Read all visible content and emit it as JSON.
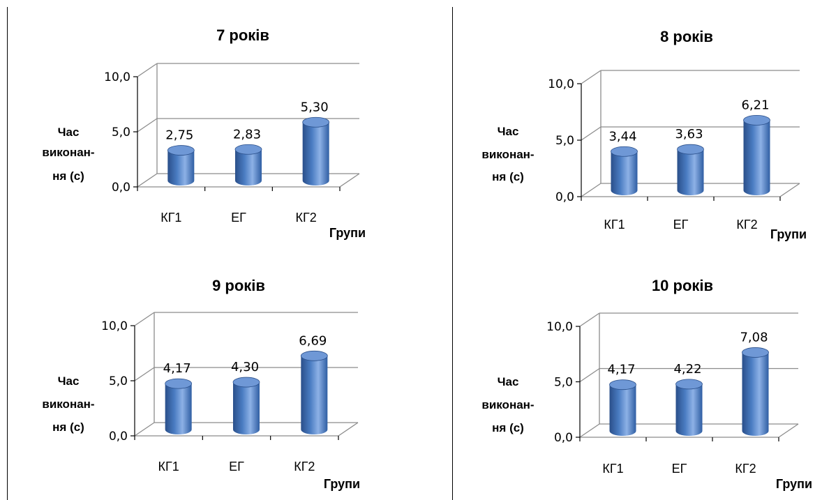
{
  "chart_data": [
    {
      "type": "bar",
      "title": "7 років",
      "categories": [
        "КГ1",
        "ЕГ",
        "КГ2"
      ],
      "values": [
        2.75,
        2.83,
        5.3
      ],
      "value_labels": [
        "2,75",
        "2,83",
        "5,30"
      ],
      "ylabel_lines": [
        "Час",
        "виконан-",
        "ня (с)"
      ],
      "xlabel": "Групи",
      "ylim": [
        0,
        10
      ],
      "yticks": [
        "0,0",
        "5,0",
        "10,0"
      ],
      "grid": true
    },
    {
      "type": "bar",
      "title": "8 років",
      "categories": [
        "КГ1",
        "ЕГ",
        "КГ2"
      ],
      "values": [
        3.44,
        3.63,
        6.21
      ],
      "value_labels": [
        "3,44",
        "3,63",
        "6,21"
      ],
      "ylabel_lines": [
        "Час",
        "виконан-",
        "ня (с)"
      ],
      "xlabel": "Групи",
      "ylim": [
        0,
        10
      ],
      "yticks": [
        "0,0",
        "5,0",
        "10,0"
      ],
      "grid": true
    },
    {
      "type": "bar",
      "title": "9 років",
      "categories": [
        "КГ1",
        "ЕГ",
        "КГ2"
      ],
      "values": [
        4.17,
        4.3,
        6.69
      ],
      "value_labels": [
        "4,17",
        "4,30",
        "6,69"
      ],
      "ylabel_lines": [
        "Час",
        "виконан-",
        "ня (с)"
      ],
      "xlabel": "Групи",
      "ylim": [
        0,
        10
      ],
      "yticks": [
        "0,0",
        "5,0",
        "10,0"
      ],
      "grid": true
    },
    {
      "type": "bar",
      "title": "10 років",
      "categories": [
        "КГ1",
        "ЕГ",
        "КГ2"
      ],
      "values": [
        4.17,
        4.22,
        7.08
      ],
      "value_labels": [
        "4,17",
        "4,22",
        "7,08"
      ],
      "ylabel_lines": [
        "Час",
        "виконан-",
        "ня (с)"
      ],
      "xlabel": "Групи",
      "ylim": [
        0,
        10
      ],
      "yticks": [
        "0,0",
        "5,0",
        "10,0"
      ],
      "grid": true
    }
  ],
  "colors": {
    "bar_dark": "#2a4f8a",
    "bar_mid": "#4a7cc2",
    "bar_light": "#8db1e6",
    "bar_top": "#6f98d6",
    "grid": "#8c8c8c",
    "axis": "#000000"
  }
}
